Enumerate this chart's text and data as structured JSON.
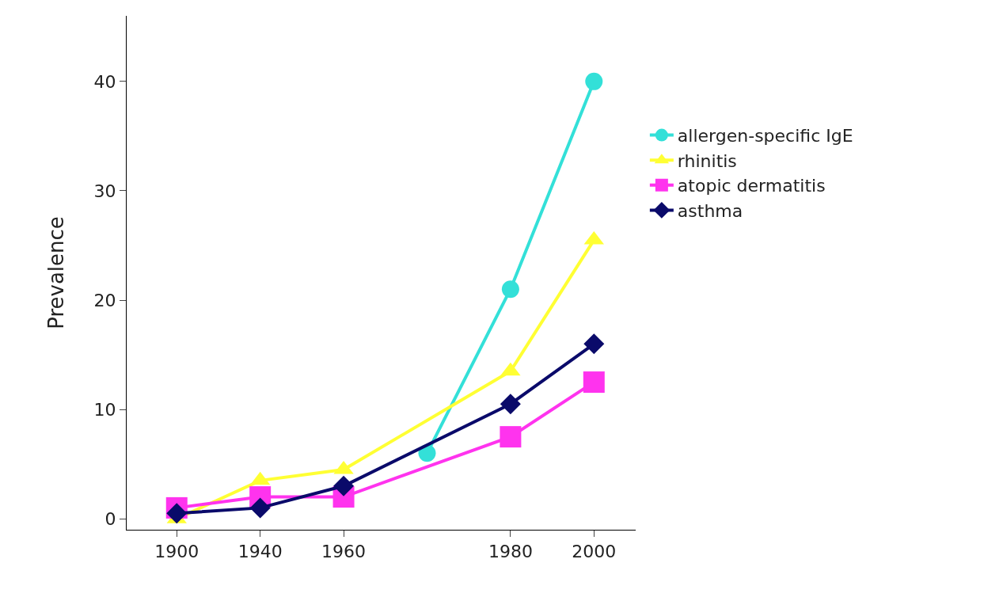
{
  "chart_data": {
    "type": "line",
    "ylabel": "Prevalence",
    "categories": [
      "1900",
      "1940",
      "1960",
      null,
      "1980",
      "2000"
    ],
    "series": [
      {
        "name": "allergen-specific IgE",
        "color": "#33e0d8",
        "marker": "circle",
        "values": [
          null,
          null,
          null,
          6,
          21,
          40
        ]
      },
      {
        "name": "rhinitis",
        "color": "#ffff33",
        "marker": "triangle",
        "values": [
          0,
          3.5,
          4.5,
          null,
          13.5,
          25.5
        ]
      },
      {
        "name": "atopic dermatitis",
        "color": "#ff33ee",
        "marker": "square",
        "values": [
          1,
          2,
          2,
          null,
          7.5,
          12.5
        ]
      },
      {
        "name": "asthma",
        "color": "#0a0a6a",
        "marker": "diamond",
        "values": [
          0.5,
          1,
          3,
          null,
          10.5,
          16
        ]
      }
    ],
    "ylim": [
      -1,
      46
    ],
    "yticks": [
      0,
      10,
      20,
      30,
      40
    ],
    "grid": false,
    "legend": "right",
    "line_style": "solid"
  }
}
